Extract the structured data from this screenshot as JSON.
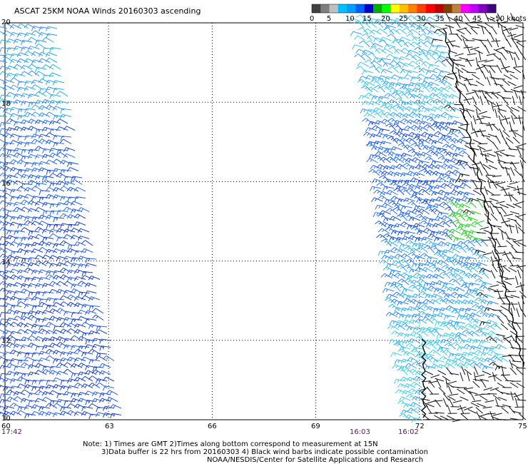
{
  "title": "ASCAT 25KM NOAA Winds 20160303 ascending",
  "color_scale": {
    "colors": [
      "#404040",
      "#7f7f7f",
      "#c0c0c0",
      "#00c0ff",
      "#00a0ff",
      "#0060ff",
      "#0000c0",
      "#00b000",
      "#00ff00",
      "#ffff00",
      "#ffc000",
      "#ff8000",
      "#ff4000",
      "#ff0000",
      "#c00000",
      "#804000",
      "#c08040",
      "#ff00ff",
      "#c000ff",
      "#8000c0",
      "#400080"
    ],
    "labels": [
      "0",
      "5",
      "10",
      "15",
      "20",
      "25",
      "30",
      "35",
      "40",
      "45",
      ">50 knots"
    ]
  },
  "lat_labels": [
    "20",
    "18",
    "16",
    "14",
    "12",
    "10"
  ],
  "lon_labels": [
    "60",
    "63",
    "66",
    "69",
    "72",
    "75"
  ],
  "time_labels": [
    "17:42",
    "16:03",
    "16:02"
  ],
  "notes": [
    "Note: 1) Times are GMT 2)Times along bottom correspond to measurement at 15N",
    "3)Data buffer is 22 hrs from 20160303 4) Black wind barbs indicate possible contamination",
    "NOAA/NESDIS/Center for Satellite Applications and Research"
  ],
  "map_data": {
    "lat_range": [
      10,
      20
    ],
    "lon_range": [
      60,
      75
    ],
    "gridlines": "dotted, every 2 deg lat and 3 deg lon",
    "swaths": [
      {
        "name": "west",
        "lon_range": [
          60,
          63
        ],
        "time": "17:42",
        "wind_knots": "5-15"
      },
      {
        "name": "east",
        "lon_range": [
          69.5,
          75
        ],
        "time": "16:03 / 16:02",
        "wind_knots": "5-20"
      }
    ],
    "coastline": "western coast of India near 73-74E"
  }
}
